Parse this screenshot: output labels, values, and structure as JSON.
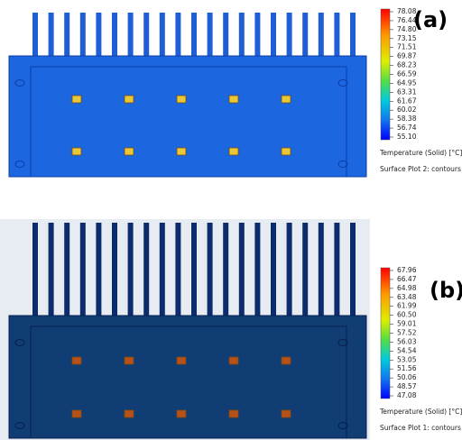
{
  "panels": [
    {
      "label": "(a)",
      "legend_ticks": [
        "78.08",
        "76.44",
        "74.80",
        "73.15",
        "71.51",
        "69.87",
        "68.23",
        "66.59",
        "64.95",
        "63.31",
        "61.67",
        "60.02",
        "58.38",
        "56.74",
        "55.10"
      ],
      "legend_title": "Temperature (Solid) [°C]",
      "plot_name": "Surface Plot 2: contours"
    },
    {
      "label": "(b)",
      "legend_ticks": [
        "67.96",
        "66.47",
        "64.98",
        "63.48",
        "61.99",
        "60.50",
        "59.01",
        "57.52",
        "56.03",
        "54.54",
        "53.05",
        "51.56",
        "50.06",
        "48.57",
        "47.08"
      ],
      "legend_title": "Temperature (Solid) [°C]",
      "plot_name": "Surface Plot 1: contours"
    }
  ]
}
